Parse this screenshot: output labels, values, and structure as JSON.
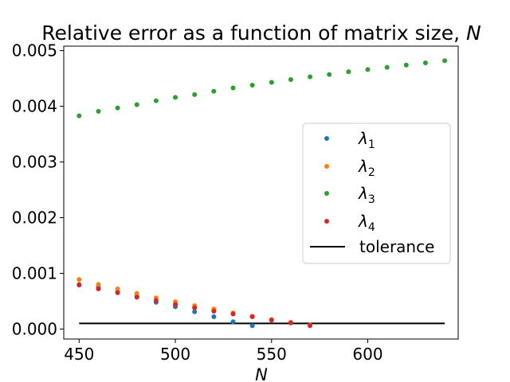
{
  "chart_data": {
    "type": "scatter",
    "title_main": "Relative error as a function of matrix size, ",
    "title_var": "N",
    "xlabel": "N",
    "ylabel": "",
    "xlim": [
      442,
      647
    ],
    "ylim": [
      -0.00018,
      0.00508
    ],
    "xticks": [
      450,
      500,
      550,
      600
    ],
    "xtick_labels": [
      "450",
      "500",
      "550",
      "600"
    ],
    "yticks": [
      0.0,
      0.001,
      0.002,
      0.003,
      0.004,
      0.005
    ],
    "ytick_labels": [
      "0.000",
      "0.001",
      "0.002",
      "0.003",
      "0.004",
      "0.005"
    ],
    "grid": false,
    "legend_position": "center-right",
    "series": [
      {
        "name": "λ1",
        "sym": "λ",
        "sub": "1",
        "color": "#1f77b4",
        "x": [
          450,
          460,
          470,
          480,
          490,
          500,
          510,
          520,
          530,
          540
        ],
        "y": [
          0.0008,
          0.00075,
          0.00067,
          0.00059,
          0.00048,
          0.0004,
          0.00031,
          0.00022,
          0.00013,
          6e-05
        ]
      },
      {
        "name": "λ2",
        "sym": "λ",
        "sub": "2",
        "color": "#ff7f0e",
        "x": [
          450,
          460,
          470,
          480,
          490,
          500,
          510,
          520,
          530,
          540,
          550,
          560,
          570
        ],
        "y": [
          0.00089,
          0.0008,
          0.00072,
          0.00064,
          0.00056,
          0.00049,
          0.00042,
          0.00036,
          0.00029,
          0.00023,
          0.00017,
          0.00012,
          7e-05
        ]
      },
      {
        "name": "λ3",
        "sym": "λ",
        "sub": "3",
        "color": "#2ca02c",
        "x": [
          450,
          460,
          470,
          480,
          490,
          500,
          510,
          520,
          530,
          540,
          550,
          560,
          570,
          580,
          590,
          600,
          610,
          620,
          630,
          640
        ],
        "y": [
          0.00383,
          0.00391,
          0.00397,
          0.00403,
          0.0041,
          0.00416,
          0.00421,
          0.00427,
          0.00433,
          0.00438,
          0.00443,
          0.00448,
          0.00453,
          0.00457,
          0.00462,
          0.00466,
          0.0047,
          0.00474,
          0.00478,
          0.00482
        ]
      },
      {
        "name": "λ4",
        "sym": "λ",
        "sub": "4",
        "color": "#d62728",
        "x": [
          450,
          460,
          470,
          480,
          490,
          500,
          510,
          520,
          530,
          540,
          550,
          560,
          570
        ],
        "y": [
          0.00079,
          0.00072,
          0.00065,
          0.00057,
          0.00051,
          0.00044,
          0.00038,
          0.00032,
          0.00027,
          0.00022,
          0.00016,
          0.00011,
          6e-05
        ]
      }
    ],
    "reference_line": {
      "name": "tolerance",
      "color": "#000000",
      "x": [
        450,
        640
      ],
      "y": [
        0.0001,
        0.0001
      ]
    }
  }
}
